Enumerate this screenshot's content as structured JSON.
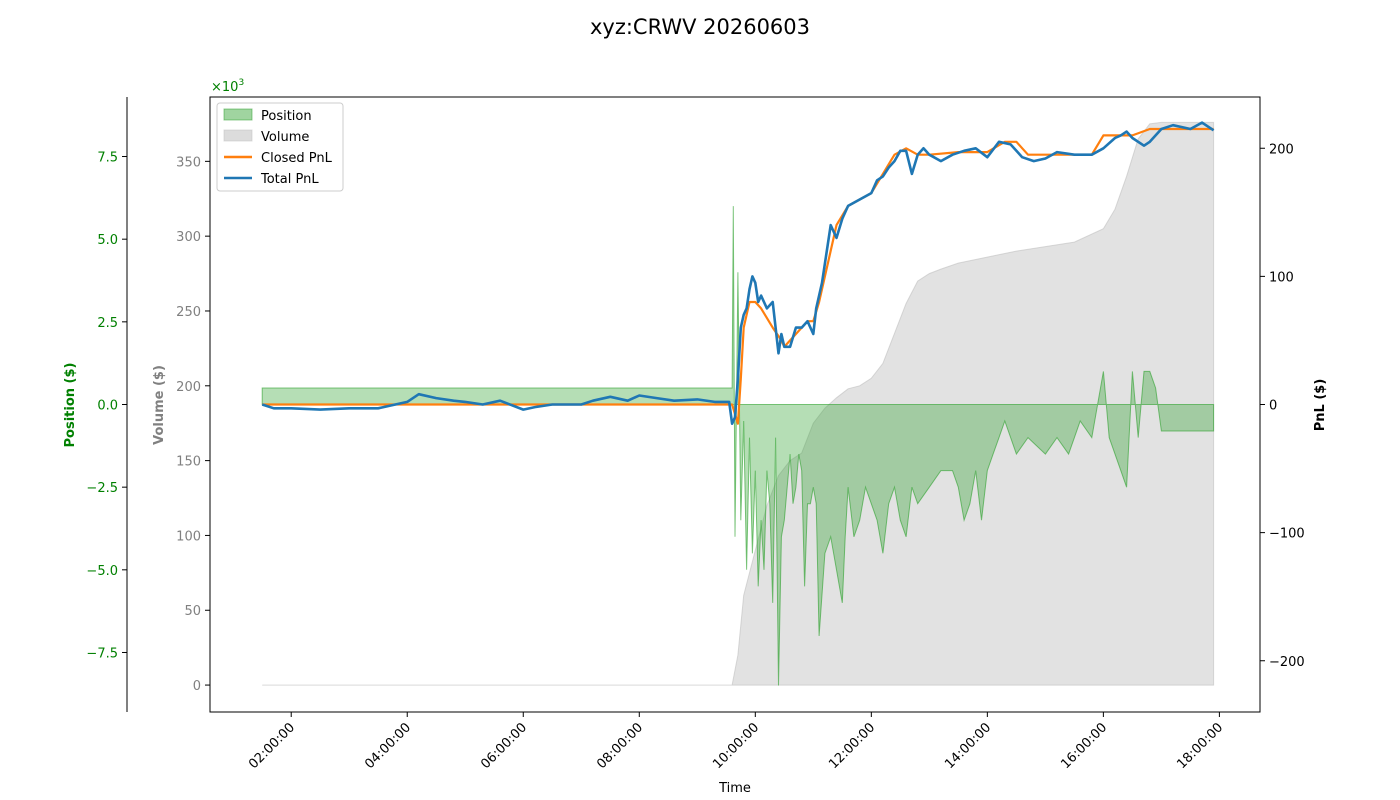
{
  "chart_data": {
    "type": "line",
    "title": "xyz:CRWV 20260603",
    "xlabel": "Time",
    "x_ticks": [
      "02:00:00",
      "04:00:00",
      "06:00:00",
      "08:00:00",
      "10:00:00",
      "12:00:00",
      "14:00:00",
      "16:00:00",
      "18:00:00"
    ],
    "x_range_hours": [
      0.6,
      18.7
    ],
    "grid": false,
    "legend_placement": "top-left",
    "axes": {
      "position": {
        "label": "Position ($)",
        "color": "#008000",
        "scale_label": "×10³",
        "scale_base": "×10",
        "scale_exp": "3",
        "ylim": [
          -9.3,
          9.3
        ],
        "ticks": [
          -7.5,
          -5.0,
          -2.5,
          0.0,
          2.5,
          5.0,
          7.5
        ],
        "tick_labels": [
          "−7.5",
          "−5.0",
          "−2.5",
          "0.0",
          "2.5",
          "5.0",
          "7.5"
        ]
      },
      "volume": {
        "label": "Volume ($)",
        "color": "#808080",
        "ylim": [
          -18,
          393
        ],
        "ticks": [
          0,
          50,
          100,
          150,
          200,
          250,
          300,
          350
        ],
        "tick_labels": [
          "0",
          "50",
          "100",
          "150",
          "200",
          "250",
          "300",
          "350"
        ]
      },
      "pnl": {
        "label": "PnL ($)",
        "color": "#000000",
        "ylim": [
          -240,
          240
        ],
        "ticks": [
          -200,
          -100,
          0,
          100,
          200
        ],
        "tick_labels": [
          "−200",
          "−100",
          "0",
          "100",
          "200"
        ]
      }
    },
    "series": [
      {
        "name": "Position",
        "kind": "area",
        "axis": "position",
        "color": "#2ca02c",
        "opacity": 0.35,
        "points": [
          [
            1.5,
            0.5
          ],
          [
            9.6,
            0.5
          ],
          [
            9.62,
            6.0
          ],
          [
            9.65,
            -4.0
          ],
          [
            9.7,
            4.0
          ],
          [
            9.75,
            -3.5
          ],
          [
            9.8,
            -0.5
          ],
          [
            9.85,
            -5.0
          ],
          [
            9.9,
            -1.0
          ],
          [
            9.95,
            -4.5
          ],
          [
            10.0,
            -2.0
          ],
          [
            10.05,
            -5.5
          ],
          [
            10.1,
            -3.5
          ],
          [
            10.15,
            -5.0
          ],
          [
            10.2,
            -2.0
          ],
          [
            10.25,
            -3.0
          ],
          [
            10.3,
            -6.0
          ],
          [
            10.35,
            -1.0
          ],
          [
            10.4,
            -8.5
          ],
          [
            10.45,
            -4.0
          ],
          [
            10.5,
            -3.5
          ],
          [
            10.55,
            -2.5
          ],
          [
            10.6,
            -1.5
          ],
          [
            10.65,
            -3.0
          ],
          [
            10.7,
            -2.5
          ],
          [
            10.75,
            -1.5
          ],
          [
            10.8,
            -2.0
          ],
          [
            10.85,
            -5.5
          ],
          [
            10.9,
            -3.0
          ],
          [
            10.95,
            -3.0
          ],
          [
            11.0,
            -2.5
          ],
          [
            11.05,
            -3.0
          ],
          [
            11.1,
            -7.0
          ],
          [
            11.2,
            -4.5
          ],
          [
            11.3,
            -4.0
          ],
          [
            11.4,
            -5.0
          ],
          [
            11.5,
            -6.0
          ],
          [
            11.55,
            -4.0
          ],
          [
            11.6,
            -2.5
          ],
          [
            11.7,
            -4.0
          ],
          [
            11.8,
            -3.5
          ],
          [
            11.9,
            -2.5
          ],
          [
            12.0,
            -3.0
          ],
          [
            12.1,
            -3.5
          ],
          [
            12.2,
            -4.5
          ],
          [
            12.3,
            -3.0
          ],
          [
            12.4,
            -2.5
          ],
          [
            12.5,
            -3.5
          ],
          [
            12.6,
            -4.0
          ],
          [
            12.7,
            -2.5
          ],
          [
            12.8,
            -3.0
          ],
          [
            13.0,
            -2.5
          ],
          [
            13.2,
            -2.0
          ],
          [
            13.4,
            -2.0
          ],
          [
            13.5,
            -2.5
          ],
          [
            13.6,
            -3.5
          ],
          [
            13.7,
            -3.0
          ],
          [
            13.8,
            -2.0
          ],
          [
            13.9,
            -3.5
          ],
          [
            14.0,
            -2.0
          ],
          [
            14.1,
            -1.5
          ],
          [
            14.2,
            -1.0
          ],
          [
            14.3,
            -0.5
          ],
          [
            14.5,
            -1.5
          ],
          [
            14.7,
            -1.0
          ],
          [
            15.0,
            -1.5
          ],
          [
            15.2,
            -1.0
          ],
          [
            15.4,
            -1.5
          ],
          [
            15.5,
            -1.0
          ],
          [
            15.6,
            -0.5
          ],
          [
            15.8,
            -1.0
          ],
          [
            16.0,
            1.0
          ],
          [
            16.1,
            -1.0
          ],
          [
            16.2,
            -1.5
          ],
          [
            16.3,
            -2.0
          ],
          [
            16.4,
            -2.5
          ],
          [
            16.5,
            1.0
          ],
          [
            16.6,
            -1.0
          ],
          [
            16.7,
            1.0
          ],
          [
            16.8,
            1.0
          ],
          [
            16.9,
            0.5
          ],
          [
            17.0,
            -0.8
          ],
          [
            17.9,
            -0.8
          ]
        ]
      },
      {
        "name": "Volume",
        "kind": "area",
        "axis": "volume",
        "color": "#bfbfbf",
        "opacity": 0.45,
        "points": [
          [
            1.5,
            0
          ],
          [
            9.6,
            0
          ],
          [
            9.7,
            20
          ],
          [
            9.8,
            60
          ],
          [
            10.0,
            90
          ],
          [
            10.2,
            120
          ],
          [
            10.4,
            140
          ],
          [
            10.6,
            150
          ],
          [
            10.8,
            155
          ],
          [
            11.0,
            175
          ],
          [
            11.2,
            185
          ],
          [
            11.4,
            192
          ],
          [
            11.6,
            198
          ],
          [
            11.8,
            200
          ],
          [
            12.0,
            205
          ],
          [
            12.2,
            215
          ],
          [
            12.4,
            235
          ],
          [
            12.6,
            255
          ],
          [
            12.8,
            270
          ],
          [
            13.0,
            275
          ],
          [
            13.2,
            278
          ],
          [
            13.5,
            282
          ],
          [
            14.0,
            286
          ],
          [
            14.5,
            290
          ],
          [
            15.0,
            293
          ],
          [
            15.5,
            296
          ],
          [
            16.0,
            305
          ],
          [
            16.2,
            318
          ],
          [
            16.4,
            340
          ],
          [
            16.6,
            365
          ],
          [
            16.8,
            375
          ],
          [
            17.0,
            376
          ],
          [
            17.9,
            376
          ]
        ]
      },
      {
        "name": "Closed PnL",
        "kind": "line",
        "axis": "pnl",
        "color": "#ff7f0e",
        "points": [
          [
            1.5,
            0
          ],
          [
            9.6,
            0
          ],
          [
            9.7,
            -15
          ],
          [
            9.75,
            20
          ],
          [
            9.8,
            60
          ],
          [
            9.9,
            80
          ],
          [
            10.0,
            80
          ],
          [
            10.1,
            75
          ],
          [
            10.3,
            60
          ],
          [
            10.45,
            50
          ],
          [
            10.5,
            45
          ],
          [
            10.6,
            50
          ],
          [
            10.8,
            60
          ],
          [
            10.9,
            65
          ],
          [
            11.0,
            65
          ],
          [
            11.1,
            80
          ],
          [
            11.2,
            100
          ],
          [
            11.3,
            120
          ],
          [
            11.4,
            140
          ],
          [
            11.6,
            155
          ],
          [
            11.8,
            160
          ],
          [
            12.0,
            165
          ],
          [
            12.2,
            180
          ],
          [
            12.4,
            195
          ],
          [
            12.6,
            200
          ],
          [
            12.8,
            195
          ],
          [
            13.0,
            195
          ],
          [
            13.5,
            197
          ],
          [
            14.0,
            197
          ],
          [
            14.3,
            205
          ],
          [
            14.5,
            205
          ],
          [
            14.7,
            195
          ],
          [
            15.0,
            195
          ],
          [
            15.5,
            195
          ],
          [
            15.8,
            195
          ],
          [
            16.0,
            210
          ],
          [
            16.5,
            210
          ],
          [
            16.8,
            215
          ],
          [
            17.0,
            215
          ],
          [
            17.9,
            215
          ]
        ]
      },
      {
        "name": "Total PnL",
        "kind": "line",
        "axis": "pnl",
        "color": "#1f77b4",
        "points": [
          [
            1.5,
            0
          ],
          [
            1.7,
            -3
          ],
          [
            2.0,
            -3
          ],
          [
            2.5,
            -4
          ],
          [
            3.0,
            -3
          ],
          [
            3.5,
            -3
          ],
          [
            4.0,
            2
          ],
          [
            4.2,
            8
          ],
          [
            4.5,
            5
          ],
          [
            4.8,
            3
          ],
          [
            5.0,
            2
          ],
          [
            5.3,
            0
          ],
          [
            5.6,
            3
          ],
          [
            6.0,
            -4
          ],
          [
            6.2,
            -2
          ],
          [
            6.5,
            0
          ],
          [
            7.0,
            0
          ],
          [
            7.2,
            3
          ],
          [
            7.5,
            6
          ],
          [
            7.8,
            3
          ],
          [
            8.0,
            7
          ],
          [
            8.3,
            5
          ],
          [
            8.6,
            3
          ],
          [
            9.0,
            4
          ],
          [
            9.3,
            2
          ],
          [
            9.55,
            2
          ],
          [
            9.6,
            -15
          ],
          [
            9.65,
            -10
          ],
          [
            9.7,
            20
          ],
          [
            9.75,
            60
          ],
          [
            9.8,
            70
          ],
          [
            9.85,
            75
          ],
          [
            9.9,
            90
          ],
          [
            9.95,
            100
          ],
          [
            10.0,
            95
          ],
          [
            10.05,
            80
          ],
          [
            10.1,
            85
          ],
          [
            10.2,
            75
          ],
          [
            10.3,
            80
          ],
          [
            10.35,
            60
          ],
          [
            10.4,
            40
          ],
          [
            10.45,
            55
          ],
          [
            10.5,
            45
          ],
          [
            10.6,
            45
          ],
          [
            10.7,
            60
          ],
          [
            10.8,
            60
          ],
          [
            10.9,
            65
          ],
          [
            11.0,
            55
          ],
          [
            11.05,
            75
          ],
          [
            11.15,
            95
          ],
          [
            11.2,
            110
          ],
          [
            11.3,
            140
          ],
          [
            11.4,
            130
          ],
          [
            11.5,
            145
          ],
          [
            11.6,
            155
          ],
          [
            11.8,
            160
          ],
          [
            12.0,
            165
          ],
          [
            12.1,
            175
          ],
          [
            12.2,
            178
          ],
          [
            12.3,
            185
          ],
          [
            12.4,
            190
          ],
          [
            12.5,
            198
          ],
          [
            12.6,
            198
          ],
          [
            12.7,
            180
          ],
          [
            12.8,
            195
          ],
          [
            12.9,
            200
          ],
          [
            13.0,
            195
          ],
          [
            13.2,
            190
          ],
          [
            13.4,
            195
          ],
          [
            13.6,
            198
          ],
          [
            13.8,
            200
          ],
          [
            14.0,
            193
          ],
          [
            14.2,
            205
          ],
          [
            14.4,
            203
          ],
          [
            14.6,
            193
          ],
          [
            14.8,
            190
          ],
          [
            15.0,
            192
          ],
          [
            15.2,
            197
          ],
          [
            15.5,
            195
          ],
          [
            15.8,
            195
          ],
          [
            16.0,
            200
          ],
          [
            16.2,
            208
          ],
          [
            16.3,
            210
          ],
          [
            16.4,
            213
          ],
          [
            16.5,
            208
          ],
          [
            16.7,
            202
          ],
          [
            16.8,
            205
          ],
          [
            17.0,
            215
          ],
          [
            17.2,
            218
          ],
          [
            17.5,
            215
          ],
          [
            17.7,
            220
          ],
          [
            17.9,
            214
          ]
        ]
      }
    ]
  }
}
